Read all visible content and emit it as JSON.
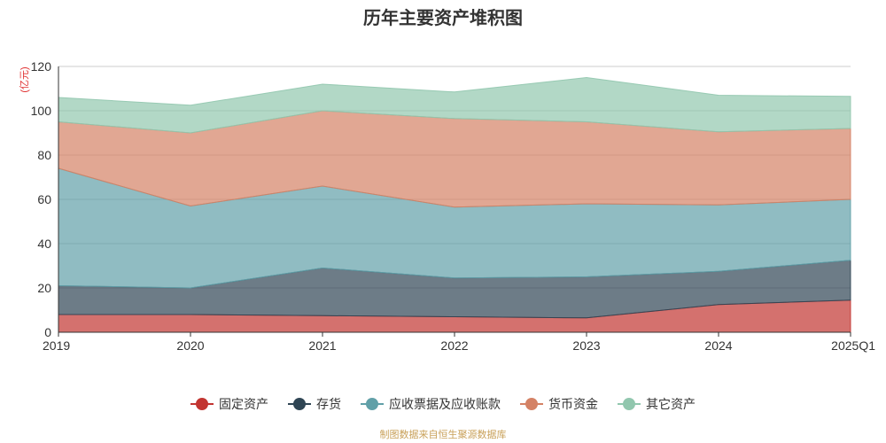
{
  "chart_data": {
    "type": "area",
    "stacked": true,
    "title": "历年主要资产堆积图",
    "ylabel": "(亿元)",
    "categories": [
      "2019",
      "2020",
      "2021",
      "2022",
      "2023",
      "2024",
      "2025Q1"
    ],
    "ylim": [
      0,
      120
    ],
    "yticks": [
      0,
      20,
      40,
      60,
      80,
      100,
      120
    ],
    "grid": true,
    "legend_position": "bottom",
    "series": [
      {
        "name": "固定资产",
        "color": "#c23531",
        "values": [
          8,
          8,
          7.5,
          7,
          6.5,
          12.5,
          14.5
        ]
      },
      {
        "name": "存货",
        "color": "#2f4554",
        "values": [
          13,
          12,
          21.5,
          17.5,
          18.5,
          15,
          18
        ]
      },
      {
        "name": "应收票据及应收账款",
        "color": "#61a0a8",
        "values": [
          53,
          37,
          37,
          32,
          33,
          30,
          27.5
        ]
      },
      {
        "name": "货币资金",
        "color": "#d48265",
        "values": [
          21,
          33,
          34,
          40,
          37,
          33,
          32
        ]
      },
      {
        "name": "其它资产",
        "color": "#91c7ae",
        "values": [
          11,
          12.5,
          12,
          12,
          20,
          16.5,
          14.5
        ]
      }
    ]
  },
  "footer": {
    "note": "制图数据来自恒生聚源数据库"
  }
}
